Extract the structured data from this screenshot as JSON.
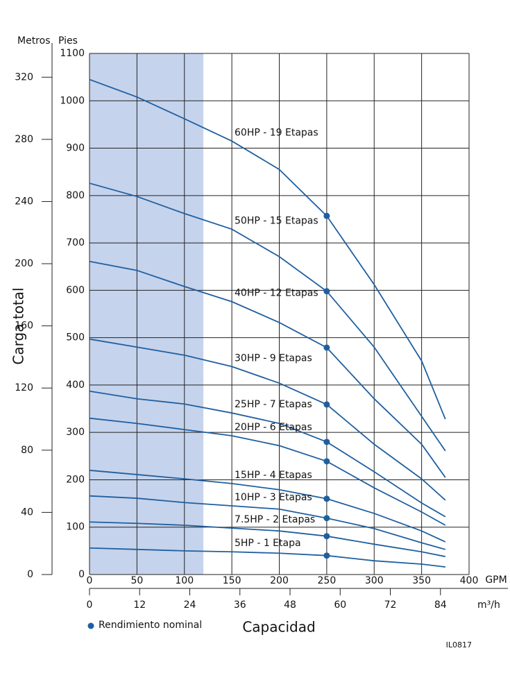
{
  "chart_data": {
    "type": "line",
    "x_label": "Capacidad",
    "y_label": "Carga total",
    "x_unit": "GPM",
    "x2_unit": "m³/h",
    "y_unit": "Pies",
    "y2_unit": "Metros",
    "x": [
      0,
      50,
      100,
      150,
      200,
      250,
      300,
      350,
      375
    ],
    "xlim": [
      0,
      400
    ],
    "xticks": [
      0,
      50,
      100,
      150,
      200,
      250,
      300,
      350,
      400
    ],
    "x2lim": [
      0,
      90.85
    ],
    "x2ticks": [
      0,
      12,
      24,
      36,
      48,
      60,
      72,
      84
    ],
    "ylim": [
      0,
      1100
    ],
    "yticks": [
      0,
      100,
      200,
      300,
      400,
      500,
      600,
      700,
      800,
      900,
      1000,
      1100
    ],
    "y2lim": [
      0,
      335.3
    ],
    "y2ticks": [
      0,
      40,
      80,
      120,
      160,
      200,
      240,
      280,
      320
    ],
    "grid": true,
    "shaded_region": {
      "x": [
        0,
        120
      ],
      "color": "#c5d3ec"
    },
    "marker_x": 250,
    "marker_label": "Rendimiento nominal",
    "color": "#1f5fa0",
    "code": "IL0817",
    "series": [
      {
        "name": "60HP - 19 Etapas",
        "color": "#1f5fa0",
        "values": [
          1045,
          1008,
          962,
          915,
          855,
          757,
          612,
          451,
          328
        ]
      },
      {
        "name": "50HP - 15 Etapas",
        "color": "#1f5fa0",
        "values": [
          826,
          798,
          762,
          729,
          671,
          598,
          480,
          334,
          261
        ]
      },
      {
        "name": "40HP - 12 Etapas",
        "color": "#1f5fa0",
        "values": [
          661,
          642,
          608,
          576,
          532,
          479,
          371,
          275,
          205
        ]
      },
      {
        "name": "30HP - 9 Etapas",
        "color": "#1f5fa0",
        "values": [
          497,
          480,
          463,
          439,
          404,
          359,
          275,
          202,
          157
        ]
      },
      {
        "name": "25HP - 7 Etapas",
        "color": "#1f5fa0",
        "values": [
          387,
          371,
          360,
          341,
          319,
          280,
          217,
          151,
          122
        ]
      },
      {
        "name": "20HP - 6 Etapas",
        "color": "#1f5fa0",
        "values": [
          330,
          319,
          306,
          293,
          272,
          239,
          183,
          132,
          104
        ]
      },
      {
        "name": "15HP - 4 Etapas",
        "color": "#1f5fa0",
        "values": [
          220,
          211,
          202,
          192,
          179,
          160,
          129,
          92,
          69
        ]
      },
      {
        "name": "10HP - 3 Etapas",
        "color": "#1f5fa0",
        "values": [
          166,
          161,
          152,
          145,
          138,
          119,
          97,
          67,
          53
        ]
      },
      {
        "name": "7.5HP - 2 Etapas",
        "color": "#1f5fa0",
        "values": [
          111,
          108,
          104,
          98,
          92,
          81,
          64,
          48,
          38
        ]
      },
      {
        "name": "5HP - 1 Etapa",
        "color": "#1f5fa0",
        "values": [
          56,
          53,
          50,
          48,
          45,
          40,
          29,
          22,
          16
        ]
      }
    ]
  }
}
